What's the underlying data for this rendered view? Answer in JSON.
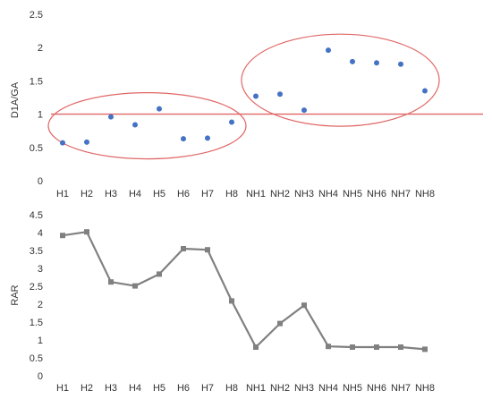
{
  "chart_data": [
    {
      "type": "scatter",
      "ylabel": "D1A/GA",
      "ylim": [
        0,
        2.5
      ],
      "yticks": [
        "0",
        "0.5",
        "1",
        "1.5",
        "2",
        "2.5"
      ],
      "categories": [
        "H1",
        "H2",
        "H3",
        "H4",
        "H5",
        "H6",
        "H7",
        "H8",
        "NH1",
        "NH2",
        "NH3",
        "NH4",
        "NH5",
        "NH6",
        "NH7",
        "NH8"
      ],
      "values": [
        0.57,
        0.58,
        0.96,
        0.84,
        1.08,
        0.63,
        0.64,
        0.88,
        1.27,
        1.3,
        1.06,
        1.96,
        1.79,
        1.77,
        1.75,
        1.35
      ],
      "reference_line": 1.0,
      "ellipse_groups": [
        [
          "H1",
          "H2",
          "H3",
          "H4",
          "H5",
          "H6",
          "H7",
          "H8"
        ],
        [
          "NH1",
          "NH2",
          "NH3",
          "NH4",
          "NH5",
          "NH6",
          "NH7",
          "NH8"
        ]
      ],
      "marker_color": "#4472C4",
      "annotation_color": "#E06666",
      "grid": false
    },
    {
      "type": "line",
      "ylabel": "RAR",
      "ylim": [
        0,
        4.5
      ],
      "yticks": [
        "0",
        "0.5",
        "1",
        "1.5",
        "2",
        "2.5",
        "3",
        "3.5",
        "4",
        "4.5"
      ],
      "categories": [
        "H1",
        "H2",
        "H3",
        "H4",
        "H5",
        "H6",
        "H7",
        "H8",
        "NH1",
        "NH2",
        "NH3",
        "NH4",
        "NH5",
        "NH6",
        "NH7",
        "NH8"
      ],
      "values": [
        3.92,
        4.02,
        2.62,
        2.51,
        2.84,
        3.55,
        3.52,
        2.09,
        0.8,
        1.46,
        1.97,
        0.82,
        0.8,
        0.8,
        0.8,
        0.74
      ],
      "line_color": "#808080",
      "grid": false
    }
  ]
}
